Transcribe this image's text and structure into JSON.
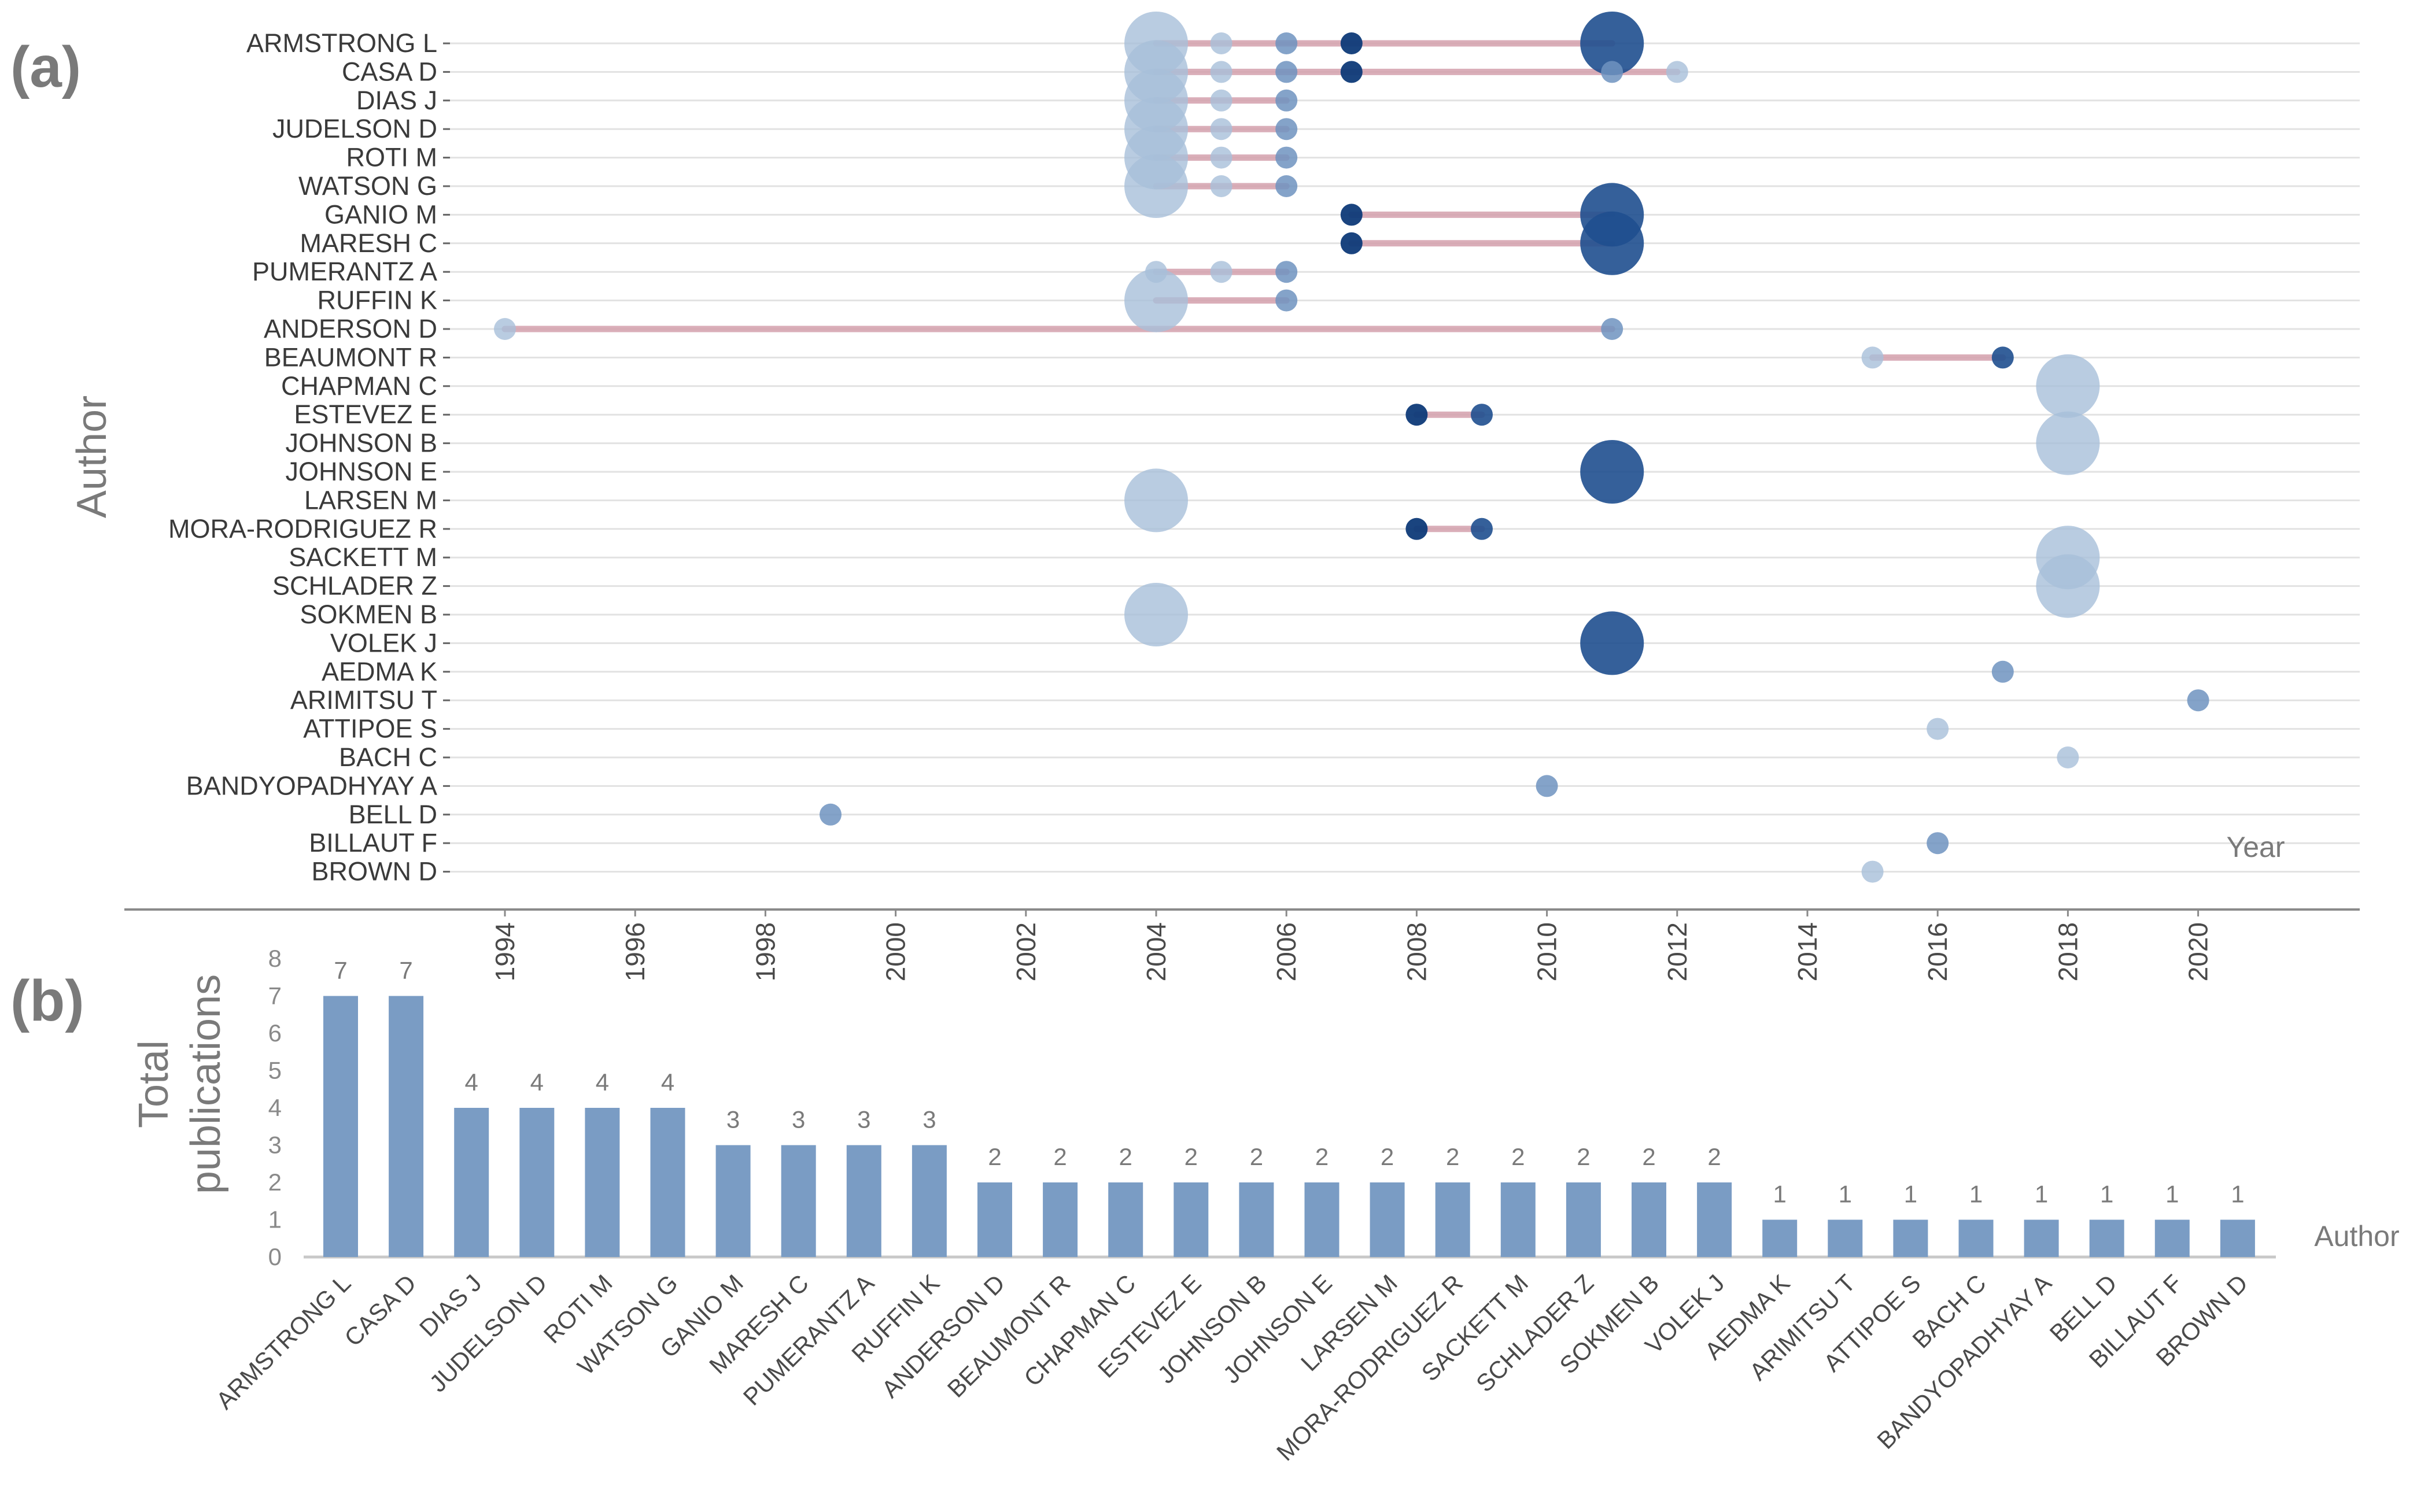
{
  "panel_labels": {
    "a": "(a)",
    "b": "(b)"
  },
  "colors": {
    "bubble_light": "#a7bfd9",
    "bubble_mid": "#6f93bf",
    "bubble_dark": "#1f4f8f",
    "bubble_darkest": "#0e3a78",
    "timeline_line": "#d4a1ad",
    "bar": "#7a9cc4",
    "grid": "#e2e2e2",
    "axis": "#8a8a8a"
  },
  "chart_data": [
    {
      "type": "scatter",
      "title": "",
      "ylabel": "Author",
      "xlabel": "Year",
      "xlim": [
        1993,
        2021.5
      ],
      "x_ticks": [
        1994,
        1996,
        1998,
        2000,
        2002,
        2004,
        2006,
        2008,
        2010,
        2012,
        2014,
        2016,
        2018,
        2020
      ],
      "authors": [
        "ARMSTRONG L",
        "CASA D",
        "DIAS J",
        "JUDELSON D",
        "ROTI M",
        "WATSON G",
        "GANIO M",
        "MARESH C",
        "PUMERANTZ A",
        "RUFFIN K",
        "ANDERSON D",
        "BEAUMONT R",
        "CHAPMAN C",
        "ESTEVEZ E",
        "JOHNSON B",
        "JOHNSON E",
        "LARSEN M",
        "MORA-RODRIGUEZ R",
        "SACKETT M",
        "SCHLADER Z",
        "SOKMEN B",
        "VOLEK J",
        "AEDMA K",
        "ARIMITSU T",
        "ATTIPOE S",
        "BACH C",
        "BANDYOPADHYAY A",
        "BELL D",
        "BILLAUT F",
        "BROWN D"
      ],
      "timelines": [
        [
          2004,
          2011
        ],
        [
          2004,
          2012
        ],
        [
          2004,
          2006
        ],
        [
          2004,
          2006
        ],
        [
          2004,
          2006
        ],
        [
          2004,
          2006
        ],
        [
          2007,
          2011
        ],
        [
          2007,
          2011
        ],
        [
          2004,
          2006
        ],
        [
          2004,
          2006
        ],
        [
          1994,
          2011
        ],
        [
          2015,
          2017
        ],
        null,
        [
          2008,
          2009
        ],
        null,
        null,
        null,
        [
          2008,
          2009
        ],
        null,
        null,
        null,
        null,
        null,
        null,
        null,
        null,
        null,
        null,
        null,
        null
      ],
      "points": [
        [
          [
            2004,
            "large",
            "light"
          ],
          [
            2005,
            "small",
            "light"
          ],
          [
            2006,
            "small",
            "mid"
          ],
          [
            2007,
            "small",
            "darkest"
          ],
          [
            2011,
            "large",
            "dark"
          ]
        ],
        [
          [
            2004,
            "large",
            "light"
          ],
          [
            2005,
            "small",
            "light"
          ],
          [
            2006,
            "small",
            "mid"
          ],
          [
            2007,
            "small",
            "darkest"
          ],
          [
            2011,
            "small",
            "mid"
          ],
          [
            2012,
            "small",
            "light"
          ]
        ],
        [
          [
            2004,
            "large",
            "light"
          ],
          [
            2005,
            "small",
            "light"
          ],
          [
            2006,
            "small",
            "mid"
          ]
        ],
        [
          [
            2004,
            "large",
            "light"
          ],
          [
            2005,
            "small",
            "light"
          ],
          [
            2006,
            "small",
            "mid"
          ]
        ],
        [
          [
            2004,
            "large",
            "light"
          ],
          [
            2005,
            "small",
            "light"
          ],
          [
            2006,
            "small",
            "mid"
          ]
        ],
        [
          [
            2004,
            "large",
            "light"
          ],
          [
            2005,
            "small",
            "light"
          ],
          [
            2006,
            "small",
            "mid"
          ]
        ],
        [
          [
            2007,
            "small",
            "darkest"
          ],
          [
            2011,
            "large",
            "dark"
          ]
        ],
        [
          [
            2007,
            "small",
            "darkest"
          ],
          [
            2011,
            "large",
            "dark"
          ]
        ],
        [
          [
            2004,
            "small",
            "light"
          ],
          [
            2005,
            "small",
            "light"
          ],
          [
            2006,
            "small",
            "mid"
          ]
        ],
        [
          [
            2004,
            "large",
            "light"
          ],
          [
            2006,
            "small",
            "mid"
          ]
        ],
        [
          [
            1994,
            "small",
            "light"
          ],
          [
            2011,
            "small",
            "mid"
          ]
        ],
        [
          [
            2015,
            "small",
            "light"
          ],
          [
            2017,
            "small",
            "dark"
          ]
        ],
        [
          [
            2018,
            "large",
            "light"
          ]
        ],
        [
          [
            2008,
            "small",
            "darkest"
          ],
          [
            2009,
            "small",
            "dark"
          ]
        ],
        [
          [
            2018,
            "large",
            "light"
          ]
        ],
        [
          [
            2011,
            "large",
            "dark"
          ]
        ],
        [
          [
            2004,
            "large",
            "light"
          ]
        ],
        [
          [
            2008,
            "small",
            "darkest"
          ],
          [
            2009,
            "small",
            "dark"
          ]
        ],
        [
          [
            2018,
            "large",
            "light"
          ]
        ],
        [
          [
            2018,
            "large",
            "light"
          ]
        ],
        [
          [
            2004,
            "large",
            "light"
          ]
        ],
        [
          [
            2011,
            "large",
            "dark"
          ]
        ],
        [
          [
            2017,
            "small",
            "mid"
          ]
        ],
        [
          [
            2020,
            "small",
            "mid"
          ]
        ],
        [
          [
            2016,
            "small",
            "light"
          ]
        ],
        [
          [
            2018,
            "small",
            "light"
          ]
        ],
        [
          [
            2010,
            "small",
            "mid"
          ]
        ],
        [
          [
            1999,
            "small",
            "mid"
          ]
        ],
        [
          [
            2016,
            "small",
            "mid"
          ]
        ],
        [
          [
            2015,
            "small",
            "light"
          ]
        ]
      ]
    },
    {
      "type": "bar",
      "title": "",
      "ylabel": "Total publications",
      "xlabel": "Author",
      "ylim": [
        0,
        8
      ],
      "y_ticks": [
        0,
        1,
        2,
        3,
        4,
        5,
        6,
        7,
        8
      ],
      "categories": [
        "ARMSTRONG L",
        "CASA D",
        "DIAS J",
        "JUDELSON D",
        "ROTI M",
        "WATSON G",
        "GANIO M",
        "MARESH C",
        "PUMERANTZ A",
        "RUFFIN K",
        "ANDERSON D",
        "BEAUMONT R",
        "CHAPMAN C",
        "ESTEVEZ E",
        "JOHNSON B",
        "JOHNSON E",
        "LARSEN M",
        "MORA-RODRIGUEZ R",
        "SACKETT M",
        "SCHLADER Z",
        "SOKMEN B",
        "VOLEK J",
        "AEDMA K",
        "ARIMITSU T",
        "ATTIPOE S",
        "BACH C",
        "BANDYOPADHYAY A",
        "BELL D",
        "BILLAUT F",
        "BROWN D"
      ],
      "values": [
        7,
        7,
        4,
        4,
        4,
        4,
        3,
        3,
        3,
        3,
        2,
        2,
        2,
        2,
        2,
        2,
        2,
        2,
        2,
        2,
        2,
        2,
        1,
        1,
        1,
        1,
        1,
        1,
        1,
        1
      ]
    }
  ]
}
